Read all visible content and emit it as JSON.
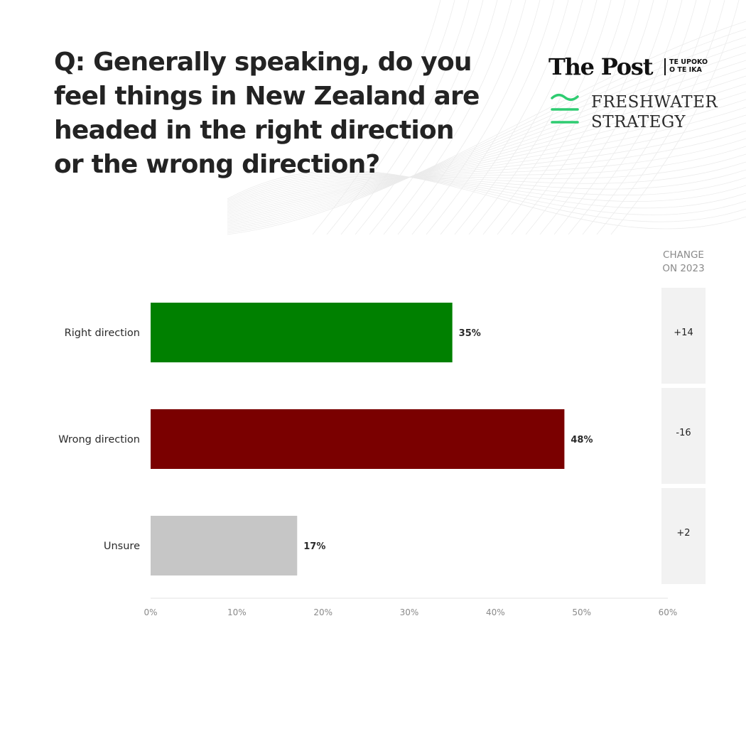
{
  "question": "Q: Generally speaking, do you\nfeel things in New Zealand are\nheaded in the right direction\nor the wrong direction?",
  "branding": {
    "post_name": "The Post",
    "post_sub": "TE UPOKO\nO TE IKA",
    "partner": "FRESHWATER\nSTRATEGY",
    "partner_color": "#2ecc71"
  },
  "change": {
    "header": "CHANGE\nON 2023",
    "values": [
      "+14",
      "-16",
      "+2"
    ]
  },
  "chart_data": {
    "type": "bar",
    "orientation": "horizontal",
    "categories": [
      "Right direction",
      "Wrong direction",
      "Unsure"
    ],
    "values": [
      35,
      48,
      17
    ],
    "value_labels": [
      "35%",
      "48%",
      "17%"
    ],
    "colors": [
      "#008000",
      "#7a0000",
      "#c6c6c6"
    ],
    "xlim": [
      0,
      60
    ],
    "xticks": [
      "0%",
      "10%",
      "20%",
      "30%",
      "40%",
      "50%",
      "60%"
    ],
    "grid": false
  }
}
